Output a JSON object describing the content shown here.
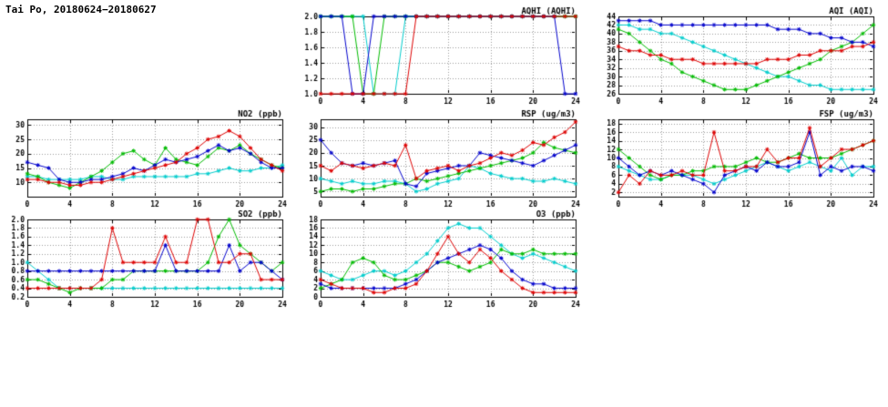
{
  "page": {
    "title": "Tai Po, 20180624−20180627"
  },
  "colors": {
    "red": "#dd0000",
    "blue": "#0000cc",
    "green": "#00bb00",
    "cyan": "#00cccc"
  },
  "chart_data": [
    {
      "type": "line",
      "title": "AQHI (AQHI)",
      "xlabel": "",
      "ylabel": "",
      "xlim": [
        0,
        24
      ],
      "xticks": [
        0,
        4,
        8,
        12,
        16,
        20,
        24
      ],
      "ylim": [
        1,
        2
      ],
      "yticks": [
        1,
        1.2,
        1.4,
        1.6,
        1.8,
        2
      ],
      "ydec": 1,
      "grid": true,
      "legend": "none",
      "series": [
        {
          "name": "cyan",
          "color": "cyan",
          "values": [
            2,
            2,
            2,
            2,
            2,
            1,
            1,
            1,
            2,
            2,
            2,
            2,
            2,
            2,
            2,
            2,
            2,
            2,
            2,
            2,
            2,
            2,
            2,
            2,
            2
          ]
        },
        {
          "name": "green",
          "color": "green",
          "values": [
            2,
            2,
            2,
            2,
            1,
            1,
            2,
            2,
            2,
            2,
            2,
            2,
            2,
            2,
            2,
            2,
            2,
            2,
            2,
            2,
            2,
            2,
            2,
            2,
            2
          ]
        },
        {
          "name": "blue",
          "color": "blue",
          "values": [
            2,
            2,
            2,
            1,
            1,
            2,
            2,
            2,
            2,
            2,
            2,
            2,
            2,
            2,
            2,
            2,
            2,
            2,
            2,
            2,
            2,
            2,
            2,
            1,
            1
          ]
        },
        {
          "name": "red",
          "color": "red",
          "values": [
            1,
            1,
            1,
            1,
            1,
            1,
            1,
            1,
            1,
            2,
            2,
            2,
            2,
            2,
            2,
            2,
            2,
            2,
            2,
            2,
            2,
            2,
            2,
            2,
            2
          ]
        }
      ]
    },
    {
      "type": "line",
      "title": "AQI (AQI)",
      "xlabel": "",
      "ylabel": "",
      "xlim": [
        0,
        24
      ],
      "xticks": [
        0,
        4,
        8,
        12,
        16,
        20,
        24
      ],
      "ylim": [
        26,
        44
      ],
      "yticks": [
        26,
        28,
        30,
        32,
        34,
        36,
        38,
        40,
        42,
        44
      ],
      "ydec": 0,
      "grid": true,
      "legend": "none",
      "series": [
        {
          "name": "cyan",
          "color": "cyan",
          "values": [
            42,
            42,
            41,
            41,
            40,
            40,
            39,
            38,
            37,
            36,
            35,
            34,
            33,
            32,
            31,
            30,
            30,
            29,
            28,
            28,
            27,
            27,
            27,
            27,
            27
          ]
        },
        {
          "name": "green",
          "color": "green",
          "values": [
            41,
            40,
            38,
            36,
            34,
            33,
            31,
            30,
            29,
            28,
            27,
            27,
            27,
            28,
            29,
            30,
            31,
            32,
            33,
            34,
            36,
            37,
            38,
            40,
            42
          ]
        },
        {
          "name": "blue",
          "color": "blue",
          "values": [
            43,
            43,
            43,
            43,
            42,
            42,
            42,
            42,
            42,
            42,
            42,
            42,
            42,
            42,
            42,
            41,
            41,
            41,
            40,
            40,
            39,
            39,
            38,
            38,
            37
          ]
        },
        {
          "name": "red",
          "color": "red",
          "values": [
            37,
            36,
            36,
            35,
            35,
            34,
            34,
            34,
            33,
            33,
            33,
            33,
            33,
            33,
            34,
            34,
            34,
            35,
            35,
            36,
            36,
            36,
            37,
            37,
            38
          ]
        }
      ]
    },
    {
      "type": "line",
      "title": "NO2 (ppb)",
      "xlabel": "",
      "ylabel": "",
      "xlim": [
        0,
        24
      ],
      "xticks": [
        0,
        4,
        8,
        12,
        16,
        20,
        24
      ],
      "ylim": [
        5,
        32
      ],
      "yticks": [
        10,
        15,
        20,
        25,
        30
      ],
      "ydec": 0,
      "grid": true,
      "legend": "none",
      "series": [
        {
          "name": "cyan",
          "color": "cyan",
          "values": [
            12,
            12,
            11,
            11,
            11,
            11,
            12,
            12,
            11,
            11,
            12,
            12,
            12,
            12,
            12,
            12,
            13,
            13,
            14,
            15,
            14,
            14,
            15,
            15,
            16
          ]
        },
        {
          "name": "green",
          "color": "green",
          "values": [
            13,
            12,
            10,
            9,
            8,
            10,
            12,
            14,
            17,
            20,
            21,
            18,
            16,
            22,
            18,
            17,
            16,
            19,
            22,
            21,
            23,
            20,
            18,
            16,
            15
          ]
        },
        {
          "name": "blue",
          "color": "blue",
          "values": [
            17,
            16,
            15,
            11,
            10,
            10,
            11,
            11,
            12,
            13,
            15,
            14,
            16,
            18,
            17,
            18,
            19,
            21,
            23,
            21,
            22,
            20,
            17,
            15,
            15
          ]
        },
        {
          "name": "red",
          "color": "red",
          "values": [
            11,
            11,
            10,
            10,
            9,
            9,
            10,
            10,
            11,
            12,
            13,
            14,
            15,
            16,
            17,
            20,
            22,
            25,
            26,
            28,
            26,
            22,
            18,
            16,
            14
          ]
        }
      ]
    },
    {
      "type": "line",
      "title": "RSP (ug/m3)",
      "xlabel": "",
      "ylabel": "",
      "xlim": [
        0,
        24
      ],
      "xticks": [
        0,
        4,
        8,
        12,
        16,
        20,
        24
      ],
      "ylim": [
        3,
        33
      ],
      "yticks": [
        5,
        10,
        15,
        20,
        25,
        30
      ],
      "ydec": 0,
      "grid": true,
      "legend": "none",
      "series": [
        {
          "name": "cyan",
          "color": "cyan",
          "values": [
            10,
            9,
            8,
            9,
            8,
            8,
            9,
            9,
            8,
            5,
            6,
            8,
            9,
            10,
            15,
            14,
            12,
            11,
            10,
            10,
            9,
            9,
            10,
            9,
            8
          ]
        },
        {
          "name": "green",
          "color": "green",
          "values": [
            5,
            6,
            6,
            5,
            6,
            6,
            7,
            8,
            8,
            10,
            9,
            10,
            11,
            12,
            13,
            14,
            15,
            16,
            17,
            18,
            20,
            24,
            22,
            21,
            20
          ]
        },
        {
          "name": "blue",
          "color": "blue",
          "values": [
            25,
            20,
            16,
            15,
            16,
            15,
            16,
            17,
            8,
            7,
            12,
            13,
            14,
            15,
            15,
            20,
            19,
            18,
            17,
            16,
            15,
            17,
            19,
            21,
            23
          ]
        },
        {
          "name": "red",
          "color": "red",
          "values": [
            15,
            13,
            16,
            15,
            14,
            15,
            16,
            15,
            23,
            10,
            13,
            14,
            15,
            13,
            15,
            16,
            18,
            20,
            19,
            21,
            24,
            23,
            26,
            28,
            32
          ]
        }
      ]
    },
    {
      "type": "line",
      "title": "FSP (ug/m3)",
      "xlabel": "",
      "ylabel": "",
      "xlim": [
        0,
        24
      ],
      "xticks": [
        0,
        4,
        8,
        12,
        16,
        20,
        24
      ],
      "ylim": [
        1,
        19
      ],
      "yticks": [
        2,
        4,
        6,
        8,
        10,
        12,
        14,
        16,
        18
      ],
      "ydec": 0,
      "grid": true,
      "legend": "none",
      "series": [
        {
          "name": "cyan",
          "color": "cyan",
          "values": [
            8,
            7,
            6,
            5,
            5,
            6,
            6,
            6,
            5,
            4,
            5,
            6,
            7,
            8,
            9,
            8,
            7,
            8,
            9,
            8,
            7,
            10,
            6,
            8,
            8
          ]
        },
        {
          "name": "green",
          "color": "green",
          "values": [
            12,
            10,
            8,
            6,
            5,
            6,
            6,
            7,
            7,
            8,
            8,
            8,
            9,
            10,
            9,
            9,
            10,
            11,
            10,
            10,
            10,
            11,
            12,
            13,
            14
          ]
        },
        {
          "name": "blue",
          "color": "blue",
          "values": [
            10,
            8,
            6,
            7,
            6,
            7,
            6,
            5,
            4,
            2,
            6,
            7,
            8,
            7,
            9,
            8,
            8,
            9,
            16,
            6,
            8,
            7,
            8,
            8,
            7
          ]
        },
        {
          "name": "red",
          "color": "red",
          "values": [
            2,
            6,
            4,
            7,
            6,
            6,
            7,
            6,
            6,
            16,
            7,
            7,
            8,
            8,
            12,
            9,
            10,
            10,
            17,
            8,
            10,
            12,
            12,
            13,
            14
          ]
        }
      ]
    },
    {
      "type": "line",
      "title": "SO2 (ppb)",
      "xlabel": "",
      "ylabel": "",
      "xlim": [
        0,
        24
      ],
      "xticks": [
        0,
        4,
        8,
        12,
        16,
        20,
        24
      ],
      "ylim": [
        0.2,
        2.0
      ],
      "yticks": [
        0.2,
        0.4,
        0.6,
        0.8,
        1.0,
        1.2,
        1.4,
        1.6,
        1.8,
        2.0
      ],
      "ydec": 1,
      "grid": true,
      "legend": "none",
      "series": [
        {
          "name": "cyan",
          "color": "cyan",
          "values": [
            1.0,
            0.8,
            0.6,
            0.4,
            0.4,
            0.4,
            0.4,
            0.4,
            0.4,
            0.4,
            0.4,
            0.4,
            0.4,
            0.4,
            0.4,
            0.4,
            0.4,
            0.4,
            0.4,
            0.4,
            0.4,
            0.4,
            0.4,
            0.4,
            0.4
          ]
        },
        {
          "name": "green",
          "color": "green",
          "values": [
            0.6,
            0.6,
            0.5,
            0.4,
            0.3,
            0.4,
            0.4,
            0.4,
            0.6,
            0.6,
            0.8,
            0.8,
            0.8,
            0.8,
            0.8,
            0.8,
            0.8,
            1.0,
            1.6,
            2.0,
            1.4,
            1.2,
            1.0,
            0.8,
            1.0
          ]
        },
        {
          "name": "blue",
          "color": "blue",
          "values": [
            0.8,
            0.8,
            0.8,
            0.8,
            0.8,
            0.8,
            0.8,
            0.8,
            0.8,
            0.8,
            0.8,
            0.8,
            0.8,
            1.4,
            0.8,
            0.8,
            0.8,
            0.8,
            0.8,
            1.4,
            0.8,
            1.0,
            1.0,
            0.8,
            0.6
          ]
        },
        {
          "name": "red",
          "color": "red",
          "values": [
            0.4,
            0.4,
            0.4,
            0.4,
            0.4,
            0.4,
            0.4,
            0.6,
            1.8,
            1.0,
            1.0,
            1.0,
            1.0,
            1.6,
            1.0,
            1.0,
            2.0,
            2.0,
            1.0,
            1.0,
            1.2,
            1.2,
            0.6,
            0.6,
            0.6
          ]
        }
      ]
    },
    {
      "type": "line",
      "title": "O3 (ppb)",
      "xlabel": "",
      "ylabel": "",
      "xlim": [
        0,
        24
      ],
      "xticks": [
        0,
        4,
        8,
        12,
        16,
        20,
        24
      ],
      "ylim": [
        0,
        18
      ],
      "yticks": [
        0,
        2,
        4,
        6,
        8,
        10,
        12,
        14,
        16,
        18
      ],
      "ydec": 0,
      "grid": true,
      "legend": "none",
      "series": [
        {
          "name": "cyan",
          "color": "cyan",
          "values": [
            6,
            5,
            4,
            4,
            5,
            6,
            6,
            5,
            6,
            8,
            10,
            13,
            16,
            17,
            16,
            16,
            14,
            12,
            10,
            9,
            10,
            9,
            8,
            7,
            6
          ]
        },
        {
          "name": "green",
          "color": "green",
          "values": [
            2,
            3,
            4,
            8,
            9,
            8,
            5,
            4,
            4,
            5,
            6,
            8,
            8,
            7,
            6,
            7,
            8,
            11,
            10,
            10,
            11,
            10,
            10,
            10,
            10
          ]
        },
        {
          "name": "blue",
          "color": "blue",
          "values": [
            3,
            2,
            2,
            2,
            2,
            2,
            2,
            2,
            3,
            4,
            6,
            8,
            9,
            10,
            11,
            12,
            11,
            9,
            6,
            4,
            3,
            3,
            2,
            2,
            2
          ]
        },
        {
          "name": "red",
          "color": "red",
          "values": [
            4,
            3,
            2,
            2,
            2,
            1,
            1,
            2,
            2,
            3,
            6,
            10,
            14,
            10,
            8,
            11,
            9,
            6,
            4,
            2,
            1,
            1,
            1,
            1,
            1
          ]
        }
      ]
    }
  ]
}
